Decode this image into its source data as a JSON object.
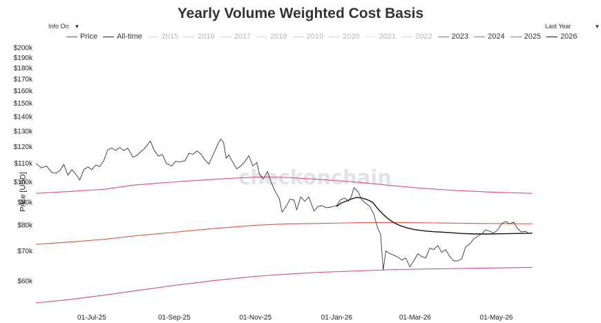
{
  "title": "Yearly Volume Weighted Cost Basis",
  "controls": {
    "info_toggle": "Info On",
    "range_select": "Last Year"
  },
  "watermark": "checkonchain",
  "chart_data": {
    "type": "line",
    "ylabel": "Price [USD]",
    "yscale": "log",
    "ylim": [
      52000,
      205000
    ],
    "xlim": [
      "2025-05-20",
      "2026-06-03"
    ],
    "yticks": [
      {
        "v": 60000,
        "label": "$60k"
      },
      {
        "v": 70000,
        "label": "$70k"
      },
      {
        "v": 80000,
        "label": "$80k"
      },
      {
        "v": 90000,
        "label": "$90k"
      },
      {
        "v": 100000,
        "label": "$100k"
      },
      {
        "v": 110000,
        "label": "$110k"
      },
      {
        "v": 120000,
        "label": "$120k"
      },
      {
        "v": 130000,
        "label": "$130k"
      },
      {
        "v": 140000,
        "label": "$140k"
      },
      {
        "v": 150000,
        "label": "$150k"
      },
      {
        "v": 160000,
        "label": "$160k"
      },
      {
        "v": 170000,
        "label": "$170k"
      },
      {
        "v": 180000,
        "label": "$180k"
      },
      {
        "v": 190000,
        "label": "$190k"
      },
      {
        "v": 200000,
        "label": "$200k"
      }
    ],
    "xticks": [
      {
        "v": "2025-07-01",
        "label": "01-Jul-25"
      },
      {
        "v": "2025-09-01",
        "label": "01-Sep-25"
      },
      {
        "v": "2025-11-01",
        "label": "01-Nov-25"
      },
      {
        "v": "2026-01-01",
        "label": "01-Jan-26"
      },
      {
        "v": "2026-03-01",
        "label": "01-Mar-26"
      },
      {
        "v": "2026-05-01",
        "label": "01-May-26"
      }
    ],
    "legend": [
      {
        "name": "Price",
        "color": "#555555",
        "visible": true
      },
      {
        "name": "All-time",
        "color": "#222222",
        "visible": true
      },
      {
        "name": "2015",
        "color": "#c7e9c0",
        "visible": false
      },
      {
        "name": "2016",
        "color": "#c6c8ef",
        "visible": false
      },
      {
        "name": "2017",
        "color": "#b9d3ee",
        "visible": false
      },
      {
        "name": "2018",
        "color": "#c8e6c9",
        "visible": false
      },
      {
        "name": "2019",
        "color": "#a9d8e6",
        "visible": false
      },
      {
        "name": "2020",
        "color": "#a7e3c8",
        "visible": false
      },
      {
        "name": "2021",
        "color": "#fbe3a3",
        "visible": false
      },
      {
        "name": "2022",
        "color": "#f8c99a",
        "visible": false
      },
      {
        "name": "2023",
        "color": "#d9448a",
        "visible": true
      },
      {
        "name": "2024",
        "color": "#e8533c",
        "visible": true
      },
      {
        "name": "2025",
        "color": "#e64a84",
        "visible": true
      },
      {
        "name": "2026",
        "color": "#111111",
        "visible": true
      }
    ],
    "series": [
      {
        "name": "Price",
        "color": "#333333",
        "width": 0.9,
        "points": [
          [
            "2025-05-20",
            110000
          ],
          [
            "2025-05-24",
            107500
          ],
          [
            "2025-05-28",
            108500
          ],
          [
            "2025-06-01",
            105000
          ],
          [
            "2025-06-04",
            104500
          ],
          [
            "2025-06-07",
            106000
          ],
          [
            "2025-06-10",
            109500
          ],
          [
            "2025-06-13",
            103500
          ],
          [
            "2025-06-16",
            106500
          ],
          [
            "2025-06-19",
            104000
          ],
          [
            "2025-06-22",
            101000
          ],
          [
            "2025-06-25",
            106500
          ],
          [
            "2025-06-28",
            108000
          ],
          [
            "2025-07-01",
            106500
          ],
          [
            "2025-07-04",
            109000
          ],
          [
            "2025-07-07",
            108200
          ],
          [
            "2025-07-10",
            111500
          ],
          [
            "2025-07-13",
            118000
          ],
          [
            "2025-07-16",
            119000
          ],
          [
            "2025-07-19",
            117600
          ],
          [
            "2025-07-22",
            119400
          ],
          [
            "2025-07-25",
            117500
          ],
          [
            "2025-07-28",
            119000
          ],
          [
            "2025-08-01",
            113500
          ],
          [
            "2025-08-04",
            114700
          ],
          [
            "2025-08-07",
            117000
          ],
          [
            "2025-08-10",
            119000
          ],
          [
            "2025-08-14",
            123500
          ],
          [
            "2025-08-17",
            117500
          ],
          [
            "2025-08-20",
            114200
          ],
          [
            "2025-08-23",
            115200
          ],
          [
            "2025-08-26",
            110000
          ],
          [
            "2025-08-30",
            108500
          ],
          [
            "2025-09-02",
            111200
          ],
          [
            "2025-09-05",
            110800
          ],
          [
            "2025-09-09",
            111500
          ],
          [
            "2025-09-12",
            115900
          ],
          [
            "2025-09-15",
            115300
          ],
          [
            "2025-09-18",
            117200
          ],
          [
            "2025-09-21",
            115500
          ],
          [
            "2025-09-24",
            112000
          ],
          [
            "2025-09-27",
            109600
          ],
          [
            "2025-10-01",
            116500
          ],
          [
            "2025-10-04",
            122000
          ],
          [
            "2025-10-06",
            124700
          ],
          [
            "2025-10-08",
            122500
          ],
          [
            "2025-10-10",
            113000
          ],
          [
            "2025-10-12",
            115000
          ],
          [
            "2025-10-15",
            110500
          ],
          [
            "2025-10-18",
            107000
          ],
          [
            "2025-10-21",
            108500
          ],
          [
            "2025-10-24",
            111000
          ],
          [
            "2025-10-27",
            114500
          ],
          [
            "2025-10-30",
            108500
          ],
          [
            "2025-11-02",
            110500
          ],
          [
            "2025-11-04",
            104000
          ],
          [
            "2025-11-07",
            101500
          ],
          [
            "2025-11-10",
            105500
          ],
          [
            "2025-11-13",
            99500
          ],
          [
            "2025-11-16",
            95000
          ],
          [
            "2025-11-19",
            91500
          ],
          [
            "2025-11-21",
            85500
          ],
          [
            "2025-11-24",
            88000
          ],
          [
            "2025-11-27",
            91500
          ],
          [
            "2025-11-30",
            91000
          ],
          [
            "2025-12-02",
            86500
          ],
          [
            "2025-12-05",
            92500
          ],
          [
            "2025-12-08",
            90500
          ],
          [
            "2025-12-11",
            92500
          ],
          [
            "2025-12-15",
            86000
          ],
          [
            "2025-12-18",
            88000
          ],
          [
            "2025-12-21",
            88500
          ],
          [
            "2025-12-24",
            87500
          ],
          [
            "2025-12-28",
            87800
          ],
          [
            "2026-01-01",
            88500
          ],
          [
            "2026-01-04",
            91200
          ],
          [
            "2026-01-07",
            92000
          ],
          [
            "2026-01-10",
            90500
          ],
          [
            "2026-01-12",
            92500
          ],
          [
            "2026-01-14",
            97000
          ],
          [
            "2026-01-17",
            95200
          ],
          [
            "2026-01-20",
            91000
          ],
          [
            "2026-01-23",
            89500
          ],
          [
            "2026-01-26",
            88000
          ],
          [
            "2026-01-29",
            84500
          ],
          [
            "2026-02-01",
            78500
          ],
          [
            "2026-02-03",
            76500
          ],
          [
            "2026-02-05",
            63500
          ],
          [
            "2026-02-07",
            70000
          ],
          [
            "2026-02-10",
            69000
          ],
          [
            "2026-02-13",
            68500
          ],
          [
            "2026-02-16",
            67800
          ],
          [
            "2026-02-19",
            66800
          ],
          [
            "2026-02-22",
            67500
          ],
          [
            "2026-02-25",
            64500
          ],
          [
            "2026-02-28",
            66500
          ],
          [
            "2026-03-03",
            69000
          ],
          [
            "2026-03-06",
            68000
          ],
          [
            "2026-03-09",
            67500
          ],
          [
            "2026-03-12",
            71000
          ],
          [
            "2026-03-15",
            70500
          ],
          [
            "2026-03-18",
            72000
          ],
          [
            "2026-03-21",
            69500
          ],
          [
            "2026-03-24",
            70500
          ],
          [
            "2026-03-27",
            68000
          ],
          [
            "2026-03-30",
            66500
          ],
          [
            "2026-04-02",
            66500
          ],
          [
            "2026-04-05",
            67200
          ],
          [
            "2026-04-08",
            71500
          ],
          [
            "2026-04-11",
            72500
          ],
          [
            "2026-04-14",
            74500
          ],
          [
            "2026-04-17",
            75500
          ],
          [
            "2026-04-20",
            76500
          ],
          [
            "2026-04-23",
            78000
          ],
          [
            "2026-04-26",
            77500
          ],
          [
            "2026-04-29",
            76800
          ],
          [
            "2026-05-02",
            78000
          ],
          [
            "2026-05-05",
            80500
          ],
          [
            "2026-05-08",
            81500
          ],
          [
            "2026-05-11",
            80500
          ],
          [
            "2026-05-14",
            81200
          ],
          [
            "2026-05-17",
            78500
          ],
          [
            "2026-05-20",
            77200
          ],
          [
            "2026-05-23",
            77500
          ],
          [
            "2026-05-26",
            76500
          ],
          [
            "2026-05-28",
            77000
          ]
        ]
      },
      {
        "name": "2026",
        "color": "#111111",
        "width": 1.4,
        "points": [
          [
            "2026-01-01",
            88000
          ],
          [
            "2026-01-04",
            89500
          ],
          [
            "2026-01-08",
            90500
          ],
          [
            "2026-01-12",
            91500
          ],
          [
            "2026-01-16",
            92300
          ],
          [
            "2026-01-20",
            92000
          ],
          [
            "2026-01-24",
            91200
          ],
          [
            "2026-01-28",
            90000
          ],
          [
            "2026-02-01",
            87000
          ],
          [
            "2026-02-05",
            84500
          ],
          [
            "2026-02-09",
            82500
          ],
          [
            "2026-02-13",
            81000
          ],
          [
            "2026-02-18",
            79700
          ],
          [
            "2026-02-24",
            78700
          ],
          [
            "2026-03-01",
            78100
          ],
          [
            "2026-03-08",
            77600
          ],
          [
            "2026-03-15",
            77300
          ],
          [
            "2026-03-25",
            77000
          ],
          [
            "2026-04-05",
            76600
          ],
          [
            "2026-04-15",
            76400
          ],
          [
            "2026-04-25",
            76400
          ],
          [
            "2026-05-05",
            76500
          ],
          [
            "2026-05-15",
            76600
          ],
          [
            "2026-05-28",
            76700
          ]
        ]
      },
      {
        "name": "2025",
        "color": "#e64a84",
        "width": 1.1,
        "points": [
          [
            "2025-05-20",
            94200
          ],
          [
            "2025-06-15",
            95200
          ],
          [
            "2025-07-10",
            96200
          ],
          [
            "2025-08-01",
            98300
          ],
          [
            "2025-08-25",
            99600
          ],
          [
            "2025-09-20",
            100800
          ],
          [
            "2025-10-15",
            101900
          ],
          [
            "2025-11-05",
            102600
          ],
          [
            "2025-11-25",
            102300
          ],
          [
            "2025-12-20",
            101200
          ],
          [
            "2026-01-15",
            99900
          ],
          [
            "2026-02-10",
            98200
          ],
          [
            "2026-03-05",
            96800
          ],
          [
            "2026-04-01",
            95600
          ],
          [
            "2026-04-25",
            94900
          ],
          [
            "2026-05-28",
            94200
          ]
        ]
      },
      {
        "name": "2024",
        "color": "#e8533c",
        "width": 1.1,
        "points": [
          [
            "2025-05-20",
            72400
          ],
          [
            "2025-06-15",
            73300
          ],
          [
            "2025-07-10",
            74300
          ],
          [
            "2025-08-05",
            75800
          ],
          [
            "2025-09-01",
            77100
          ],
          [
            "2025-10-01",
            78600
          ],
          [
            "2025-11-01",
            79900
          ],
          [
            "2025-11-25",
            80500
          ],
          [
            "2025-12-20",
            80700
          ],
          [
            "2026-01-20",
            81000
          ],
          [
            "2026-02-15",
            81100
          ],
          [
            "2026-03-15",
            80900
          ],
          [
            "2026-04-15",
            80700
          ],
          [
            "2026-05-28",
            80500
          ]
        ]
      },
      {
        "name": "2023",
        "color": "#d9448a",
        "width": 1.1,
        "points": [
          [
            "2025-05-20",
            53500
          ],
          [
            "2025-06-15",
            54500
          ],
          [
            "2025-07-10",
            55700
          ],
          [
            "2025-08-05",
            57100
          ],
          [
            "2025-09-01",
            58600
          ],
          [
            "2025-10-01",
            60100
          ],
          [
            "2025-11-01",
            61400
          ],
          [
            "2025-11-25",
            62100
          ],
          [
            "2025-12-20",
            62700
          ],
          [
            "2026-01-20",
            63200
          ],
          [
            "2026-02-15",
            63600
          ],
          [
            "2026-03-15",
            63800
          ],
          [
            "2026-04-15",
            64000
          ],
          [
            "2026-05-28",
            64300
          ]
        ]
      }
    ]
  }
}
